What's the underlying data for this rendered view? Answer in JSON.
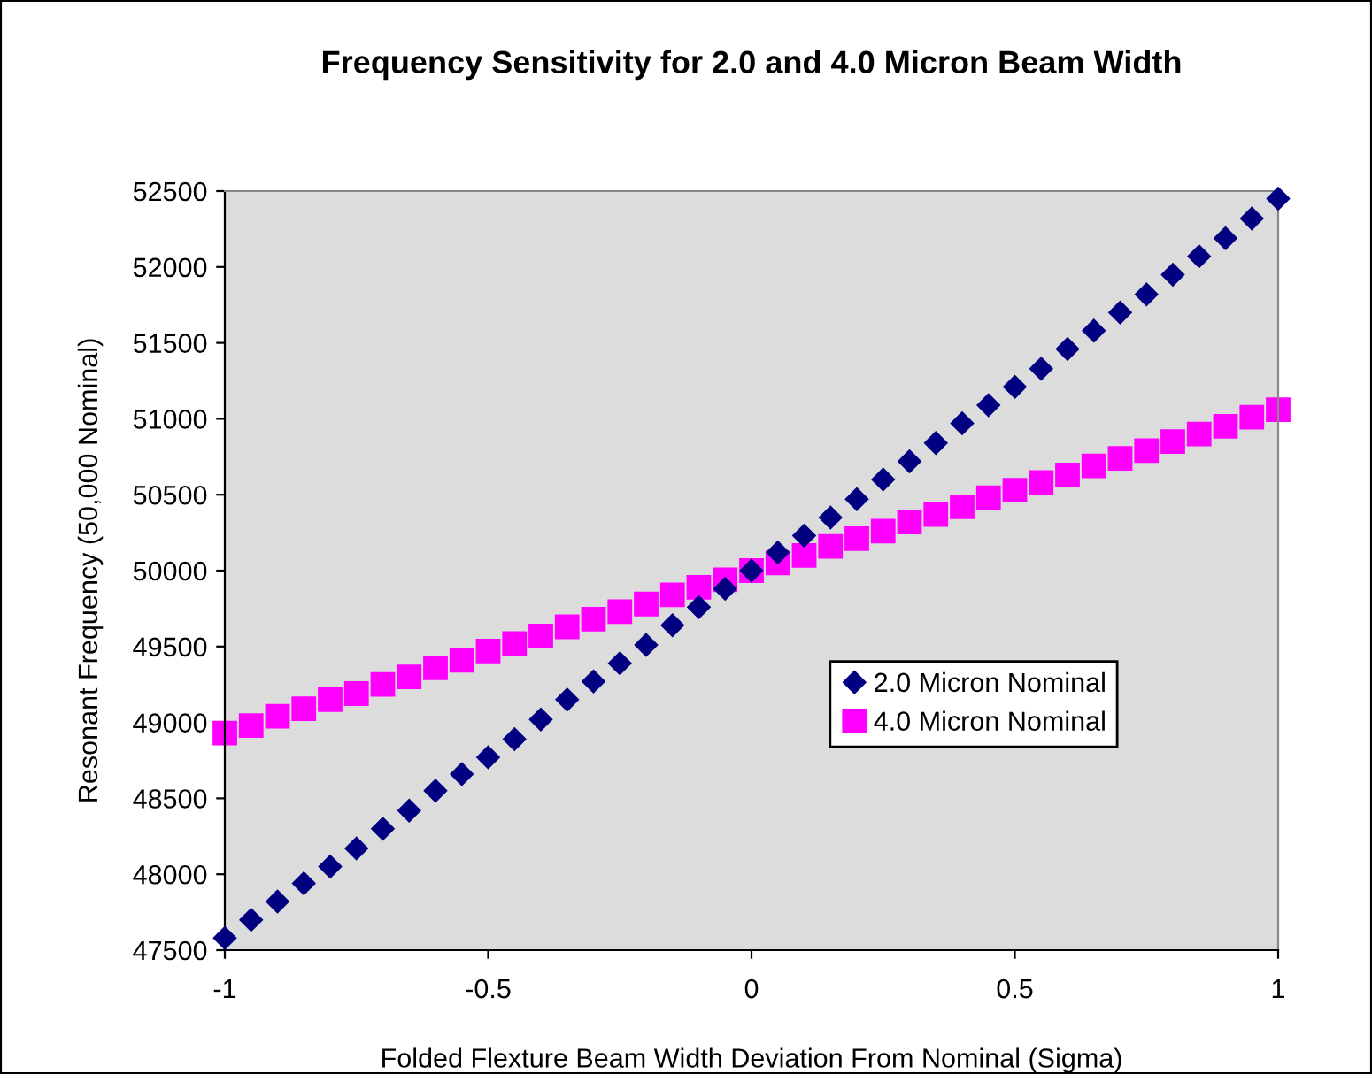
{
  "chart_data": {
    "type": "scatter",
    "title": "Frequency Sensitivity for 2.0 and 4.0 Micron Beam Width",
    "xlabel": "Folded Flexture Beam Width Deviation From Nominal (Sigma)",
    "ylabel": "Resonant Frequency (50,000 Nominal)",
    "x": [
      -1,
      -0.95,
      -0.9,
      -0.85,
      -0.8,
      -0.75,
      -0.7,
      -0.65,
      -0.6,
      -0.55,
      -0.5,
      -0.45,
      -0.4,
      -0.35,
      -0.3,
      -0.25,
      -0.2,
      -0.15,
      -0.1,
      -0.05,
      0,
      0.05,
      0.1,
      0.15,
      0.2,
      0.25,
      0.3,
      0.35,
      0.4,
      0.45,
      0.5,
      0.55,
      0.6,
      0.65,
      0.7,
      0.75,
      0.8,
      0.85,
      0.9,
      0.95,
      1
    ],
    "series": [
      {
        "name": "2.0 Micron Nominal",
        "color": "#000080",
        "marker": "diamond",
        "values": [
          47580,
          47700,
          47820,
          47940,
          48050,
          48170,
          48300,
          48420,
          48550,
          48660,
          48770,
          48890,
          49020,
          49150,
          49270,
          49390,
          49510,
          49640,
          49760,
          49880,
          50000,
          50120,
          50230,
          50350,
          50470,
          50600,
          50720,
          50840,
          50970,
          51090,
          51210,
          51330,
          51460,
          51580,
          51700,
          51820,
          51950,
          52070,
          52190,
          52320,
          52450
        ]
      },
      {
        "name": "4.0 Micron Nominal",
        "color": "#ff00ff",
        "marker": "square",
        "values": [
          48930,
          48980,
          49040,
          49090,
          49150,
          49190,
          49250,
          49300,
          49360,
          49410,
          49470,
          49520,
          49570,
          49630,
          49680,
          49730,
          49780,
          49840,
          49890,
          49940,
          50000,
          50050,
          50100,
          50160,
          50210,
          50260,
          50320,
          50370,
          50420,
          50480,
          50530,
          50580,
          50630,
          50690,
          50740,
          50790,
          50850,
          50900,
          50950,
          51010,
          51060
        ]
      }
    ],
    "xlim": [
      -1,
      1
    ],
    "xticks": [
      -1,
      -0.5,
      0,
      0.5,
      1
    ],
    "ylim": [
      47500,
      52500
    ],
    "yticks": [
      47500,
      48000,
      48500,
      49000,
      49500,
      50000,
      50500,
      51000,
      51500,
      52000,
      52500
    ],
    "grid": false,
    "legend": "bottom right"
  }
}
